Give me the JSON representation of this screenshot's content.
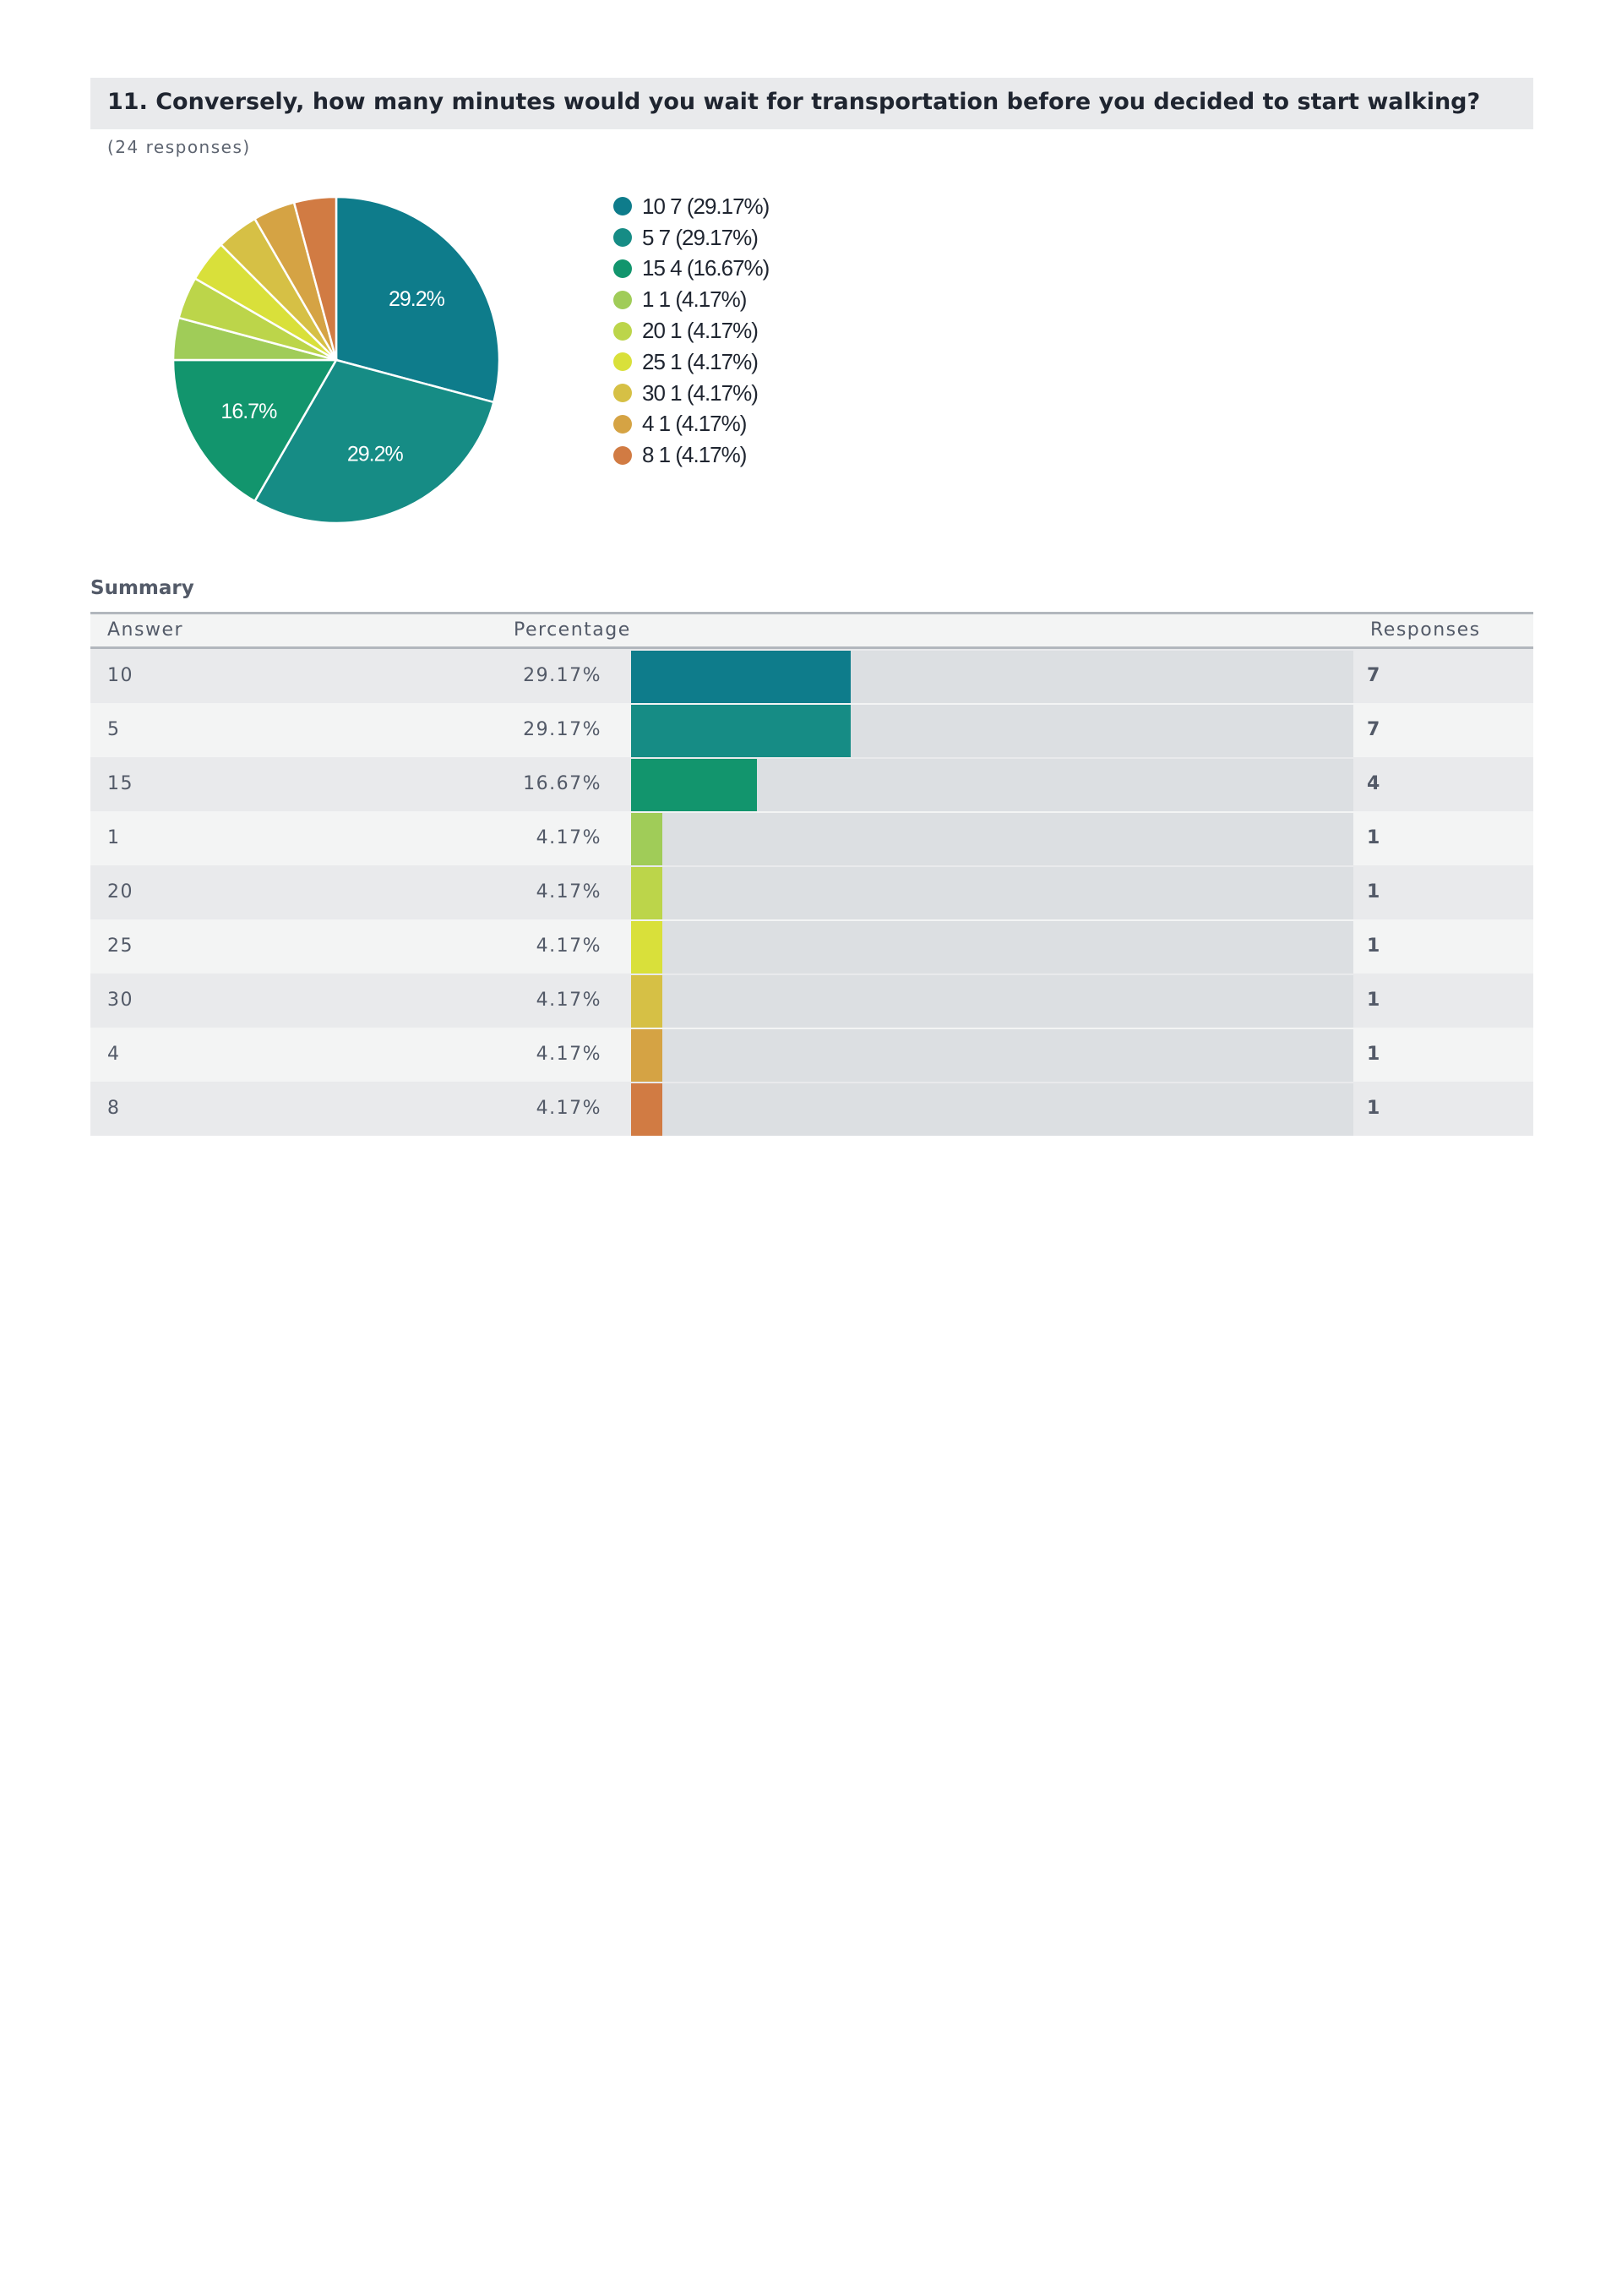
{
  "question": {
    "title": "11. Conversely, how many minutes would you wait for transportation before you decided to start walking?",
    "responses_note": "(24 responses)"
  },
  "chart_data": {
    "type": "pie",
    "title": "11. Conversely, how many minutes would you wait for transportation before you decided to start walking?",
    "total": 24,
    "legend_position": "right",
    "slices": [
      {
        "answer": "10",
        "count": 7,
        "percent": 29.17,
        "label": "29.2%",
        "legend": "10 7 (29.17%)",
        "color": "#0e7c8b"
      },
      {
        "answer": "5",
        "count": 7,
        "percent": 29.17,
        "label": "29.2%",
        "legend": "5 7 (29.17%)",
        "color": "#168c85"
      },
      {
        "answer": "15",
        "count": 4,
        "percent": 16.67,
        "label": "16.7%",
        "legend": "15 4 (16.67%)",
        "color": "#12956d"
      },
      {
        "answer": "1",
        "count": 1,
        "percent": 4.17,
        "label": "",
        "legend": "1 1 (4.17%)",
        "color": "#a0cc58"
      },
      {
        "answer": "20",
        "count": 1,
        "percent": 4.17,
        "label": "",
        "legend": "20 1 (4.17%)",
        "color": "#bcd54a"
      },
      {
        "answer": "25",
        "count": 1,
        "percent": 4.17,
        "label": "",
        "legend": "25 1 (4.17%)",
        "color": "#d9e03a"
      },
      {
        "answer": "30",
        "count": 1,
        "percent": 4.17,
        "label": "",
        "legend": "30 1 (4.17%)",
        "color": "#d6c045"
      },
      {
        "answer": "4",
        "count": 1,
        "percent": 4.17,
        "label": "",
        "legend": "4 1 (4.17%)",
        "color": "#d5a344"
      },
      {
        "answer": "8",
        "count": 1,
        "percent": 4.17,
        "label": "",
        "legend": "8 1 (4.17%)",
        "color": "#d17b43"
      }
    ]
  },
  "summary": {
    "heading": "Summary",
    "columns": {
      "answer": "Answer",
      "percentage": "Percentage",
      "responses": "Responses"
    },
    "rows": [
      {
        "answer": "10",
        "percentage": "29.17%",
        "value": 29.17,
        "responses": "7"
      },
      {
        "answer": "5",
        "percentage": "29.17%",
        "value": 29.17,
        "responses": "7"
      },
      {
        "answer": "15",
        "percentage": "16.67%",
        "value": 16.67,
        "responses": "4"
      },
      {
        "answer": "1",
        "percentage": "4.17%",
        "value": 4.17,
        "responses": "1"
      },
      {
        "answer": "20",
        "percentage": "4.17%",
        "value": 4.17,
        "responses": "1"
      },
      {
        "answer": "25",
        "percentage": "4.17%",
        "value": 4.17,
        "responses": "1"
      },
      {
        "answer": "30",
        "percentage": "4.17%",
        "value": 4.17,
        "responses": "1"
      },
      {
        "answer": "4",
        "percentage": "4.17%",
        "value": 4.17,
        "responses": "1"
      },
      {
        "answer": "8",
        "percentage": "4.17%",
        "value": 4.17,
        "responses": "1"
      }
    ]
  }
}
